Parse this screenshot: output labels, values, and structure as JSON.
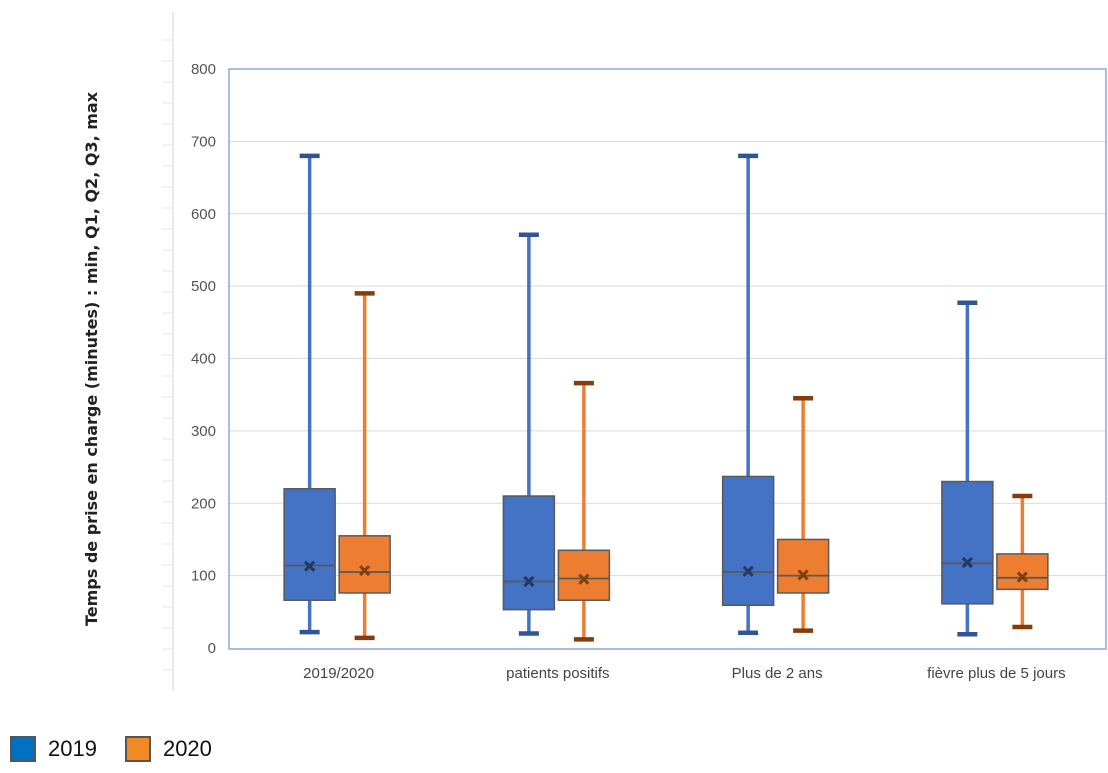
{
  "chart_data": {
    "type": "box",
    "ylabel": "Temps de prise en charge (minutes) : min, Q1, Q2, Q3, max",
    "xlabel": "",
    "ylim": [
      0,
      800
    ],
    "yticks": [
      "0",
      "100",
      "200",
      "300",
      "400",
      "500",
      "600",
      "700",
      "800"
    ],
    "ytick_values": [
      0,
      100,
      200,
      300,
      400,
      500,
      600,
      700,
      800
    ],
    "grid": true,
    "legend_position": "bottom-left",
    "categories": [
      "2019/2020",
      "patients positifs",
      "Plus de 2 ans",
      "fièvre plus de 5 jours"
    ],
    "series": [
      {
        "name": "2019",
        "color": "#4472C4",
        "boxes": [
          {
            "min": 22,
            "q1": 66,
            "median": 114,
            "q3": 220,
            "max": 680,
            "mean": 113
          },
          {
            "min": 20,
            "q1": 53,
            "median": 92,
            "q3": 210,
            "max": 571,
            "mean": 92
          },
          {
            "min": 21,
            "q1": 59,
            "median": 105,
            "q3": 237,
            "max": 680,
            "mean": 106
          },
          {
            "min": 19,
            "q1": 61,
            "median": 117,
            "q3": 230,
            "max": 477,
            "mean": 118
          }
        ]
      },
      {
        "name": "2020",
        "color": "#ED7D31",
        "boxes": [
          {
            "min": 14,
            "q1": 76,
            "median": 105,
            "q3": 155,
            "max": 490,
            "mean": 107
          },
          {
            "min": 12,
            "q1": 66,
            "median": 96,
            "q3": 135,
            "max": 366,
            "mean": 95
          },
          {
            "min": 24,
            "q1": 76,
            "median": 100,
            "q3": 150,
            "max": 345,
            "mean": 101
          },
          {
            "min": 29,
            "q1": 81,
            "median": 97,
            "q3": 130,
            "max": 210,
            "mean": 98
          }
        ]
      }
    ]
  },
  "legend": {
    "items": [
      {
        "label": "2019",
        "color": "#0070C0"
      },
      {
        "label": "2020",
        "color": "#F08A24"
      }
    ]
  }
}
